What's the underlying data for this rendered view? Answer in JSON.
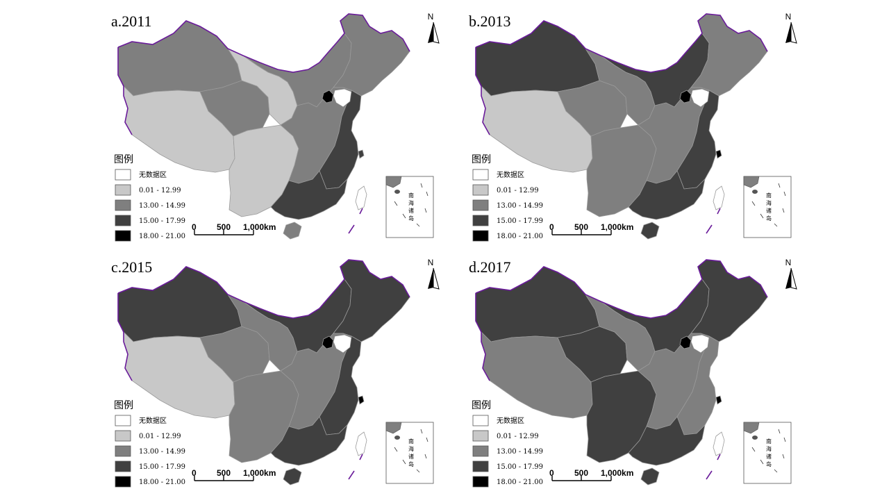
{
  "colors": {
    "no_data": "#ffffff",
    "c1": "#c8c8c8",
    "c2": "#7f7f7f",
    "c3": "#404040",
    "c4": "#000000",
    "border": "#6a1b9a"
  },
  "legend": {
    "title": "图例",
    "items": [
      {
        "key": "no_data",
        "label": "无数据区"
      },
      {
        "key": "c1",
        "label": "0.01 - 12.99"
      },
      {
        "key": "c2",
        "label": "13.00 - 14.99"
      },
      {
        "key": "c3",
        "label": "15.00 - 17.99"
      },
      {
        "key": "c4",
        "label": "18.00 - 21.00"
      }
    ]
  },
  "scale_bar": {
    "labels": [
      "0",
      "500",
      "1,000km"
    ]
  },
  "north_arrow": {
    "label": "N"
  },
  "inset": {
    "label": [
      "南",
      "海",
      "诸",
      "岛"
    ]
  },
  "maps": [
    {
      "title": "a.2011",
      "regions": {
        "northwest": "c2",
        "tibet": "c1",
        "qinghai": "c2",
        "gansu": "c1",
        "innermongolia": "c2",
        "northeast": "c2",
        "southwest": "c1",
        "central": "c2",
        "eastcoast": "c3",
        "south": "c3",
        "hainan": "c2",
        "taiwan": "no_data",
        "beijing": "c4",
        "shanghai": "c3",
        "bohai": "no_data"
      }
    },
    {
      "title": "b.2013",
      "regions": {
        "northwest": "c3",
        "tibet": "c1",
        "qinghai": "c2",
        "gansu": "c2",
        "innermongolia": "c3",
        "northeast": "c2",
        "southwest": "c2",
        "central": "c2",
        "eastcoast": "c3",
        "south": "c3",
        "hainan": "c3",
        "taiwan": "no_data",
        "beijing": "c4",
        "shanghai": "c4",
        "bohai": "no_data"
      }
    },
    {
      "title": "c.2015",
      "regions": {
        "northwest": "c3",
        "tibet": "c1",
        "qinghai": "c2",
        "gansu": "c2",
        "innermongolia": "c3",
        "northeast": "c3",
        "southwest": "c2",
        "central": "c2",
        "eastcoast": "c3",
        "south": "c3",
        "hainan": "c3",
        "taiwan": "no_data",
        "beijing": "c4",
        "shanghai": "c4",
        "bohai": "no_data"
      }
    },
    {
      "title": "d.2017",
      "regions": {
        "northwest": "c3",
        "tibet": "c2",
        "qinghai": "c3",
        "gansu": "c2",
        "innermongolia": "c3",
        "northeast": "c3",
        "southwest": "c3",
        "central": "c2",
        "eastcoast": "c2",
        "south": "c3",
        "hainan": "c3",
        "taiwan": "no_data",
        "beijing": "c4",
        "shanghai": "c4",
        "bohai": "no_data"
      }
    }
  ]
}
